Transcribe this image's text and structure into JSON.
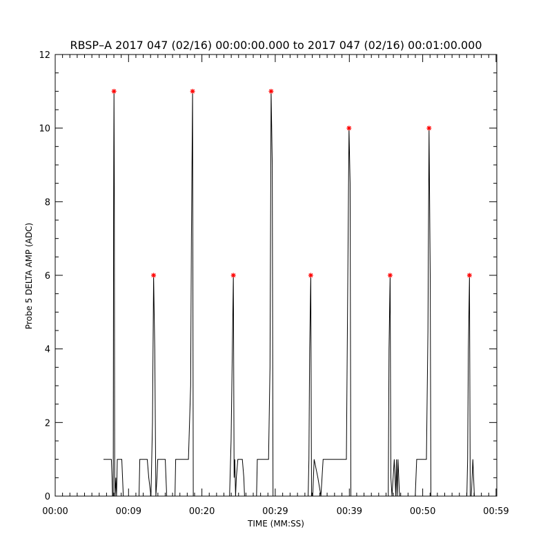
{
  "chart_data": {
    "type": "line",
    "title": "RBSP–A 2017 047 (02/16) 00:00:00.000 to 2017 047 (02/16) 00:01:00.000",
    "xlabel": "TIME (MM:SS)",
    "ylabel": "Probe 5 DELTA AMP (ADC)",
    "xlim": [
      0,
      59
    ],
    "ylim": [
      0,
      12
    ],
    "grid": false,
    "x_ticks": [
      {
        "value": 0,
        "label": "00:00"
      },
      {
        "value": 9.8,
        "label": "00:09"
      },
      {
        "value": 19.6,
        "label": "00:20"
      },
      {
        "value": 29.4,
        "label": "00:29"
      },
      {
        "value": 39.3,
        "label": "00:39"
      },
      {
        "value": 49.1,
        "label": "00:50"
      },
      {
        "value": 58.9,
        "label": "00:59"
      }
    ],
    "y_ticks": [
      {
        "value": 0,
        "label": "0"
      },
      {
        "value": 2,
        "label": "2"
      },
      {
        "value": 4,
        "label": "4"
      },
      {
        "value": 6,
        "label": "6"
      },
      {
        "value": 8,
        "label": "8"
      },
      {
        "value": 10,
        "label": "10"
      },
      {
        "value": 12,
        "label": "12"
      }
    ],
    "series": [
      {
        "values": [
          [
            6.45,
            1
          ],
          [
            7.5,
            1
          ],
          [
            7.6,
            0.5
          ],
          [
            7.65,
            0
          ],
          [
            7.75,
            0
          ],
          [
            7.8,
            7.5
          ],
          [
            7.85,
            11
          ],
          [
            7.9,
            8.5
          ],
          [
            7.95,
            0.5
          ],
          [
            8.0,
            0
          ],
          [
            8.1,
            0.5
          ],
          [
            8.2,
            0
          ],
          [
            8.3,
            1
          ],
          [
            8.9,
            1
          ],
          [
            9.0,
            0.5
          ],
          [
            9.1,
            0
          ],
          [
            11.2,
            0
          ],
          [
            11.3,
            1
          ],
          [
            12.3,
            1
          ],
          [
            12.5,
            0.5
          ],
          [
            12.8,
            0
          ],
          [
            13.0,
            2
          ],
          [
            13.15,
            6
          ],
          [
            13.3,
            4
          ],
          [
            13.45,
            0
          ],
          [
            13.6,
            0.5
          ],
          [
            13.7,
            1
          ],
          [
            14.7,
            1
          ],
          [
            14.9,
            0
          ],
          [
            16.0,
            0
          ],
          [
            16.1,
            1
          ],
          [
            17.8,
            1
          ],
          [
            18.1,
            3
          ],
          [
            18.2,
            7
          ],
          [
            18.35,
            11
          ],
          [
            18.45,
            0
          ],
          [
            18.6,
            0
          ],
          [
            23.3,
            0
          ],
          [
            23.5,
            1.5
          ],
          [
            23.7,
            4.5
          ],
          [
            23.8,
            6
          ],
          [
            23.9,
            0.5
          ],
          [
            24.0,
            1
          ],
          [
            24.1,
            0
          ],
          [
            24.2,
            0.5
          ],
          [
            24.4,
            1
          ],
          [
            25.0,
            1
          ],
          [
            25.2,
            0.5
          ],
          [
            25.3,
            0
          ],
          [
            26.9,
            0
          ],
          [
            27.0,
            1
          ],
          [
            28.5,
            1
          ],
          [
            28.7,
            3.5
          ],
          [
            28.85,
            11
          ],
          [
            29.0,
            9
          ],
          [
            29.1,
            0
          ],
          [
            29.2,
            0
          ],
          [
            33.8,
            0
          ],
          [
            33.9,
            1
          ],
          [
            34.0,
            4
          ],
          [
            34.15,
            6
          ],
          [
            34.25,
            0
          ],
          [
            34.4,
            0
          ],
          [
            34.6,
            1
          ],
          [
            35.1,
            0.5
          ],
          [
            35.5,
            0
          ],
          [
            35.8,
            1
          ],
          [
            36.0,
            1
          ],
          [
            37.4,
            1
          ],
          [
            38.9,
            1
          ],
          [
            39.1,
            6
          ],
          [
            39.25,
            10
          ],
          [
            39.4,
            8.5
          ],
          [
            39.5,
            0
          ],
          [
            39.7,
            0
          ],
          [
            44.5,
            0
          ],
          [
            44.6,
            4
          ],
          [
            44.75,
            6
          ],
          [
            44.85,
            0.5
          ],
          [
            45.0,
            0
          ],
          [
            45.3,
            1
          ],
          [
            45.5,
            0
          ],
          [
            45.6,
            1
          ],
          [
            45.7,
            0
          ],
          [
            45.8,
            1
          ],
          [
            46.0,
            0
          ],
          [
            48.1,
            0
          ],
          [
            48.3,
            1
          ],
          [
            49.6,
            1
          ],
          [
            49.8,
            4.5
          ],
          [
            49.95,
            10
          ],
          [
            50.1,
            6
          ],
          [
            50.2,
            0
          ],
          [
            50.4,
            0
          ],
          [
            55.0,
            0
          ],
          [
            55.1,
            1
          ],
          [
            55.2,
            4
          ],
          [
            55.35,
            6
          ],
          [
            55.45,
            0
          ],
          [
            55.6,
            0
          ],
          [
            55.8,
            1
          ],
          [
            56.0,
            0
          ],
          [
            59.0,
            0
          ],
          [
            59.0,
            1
          ]
        ]
      }
    ],
    "peaks": [
      [
        7.85,
        11
      ],
      [
        13.15,
        6
      ],
      [
        18.35,
        11
      ],
      [
        23.8,
        6
      ],
      [
        28.85,
        11
      ],
      [
        34.15,
        6
      ],
      [
        39.25,
        10
      ],
      [
        44.75,
        6
      ],
      [
        49.95,
        10
      ],
      [
        55.35,
        6
      ]
    ],
    "line_color": "#000000",
    "peak_marker_color": "#ff0000"
  }
}
